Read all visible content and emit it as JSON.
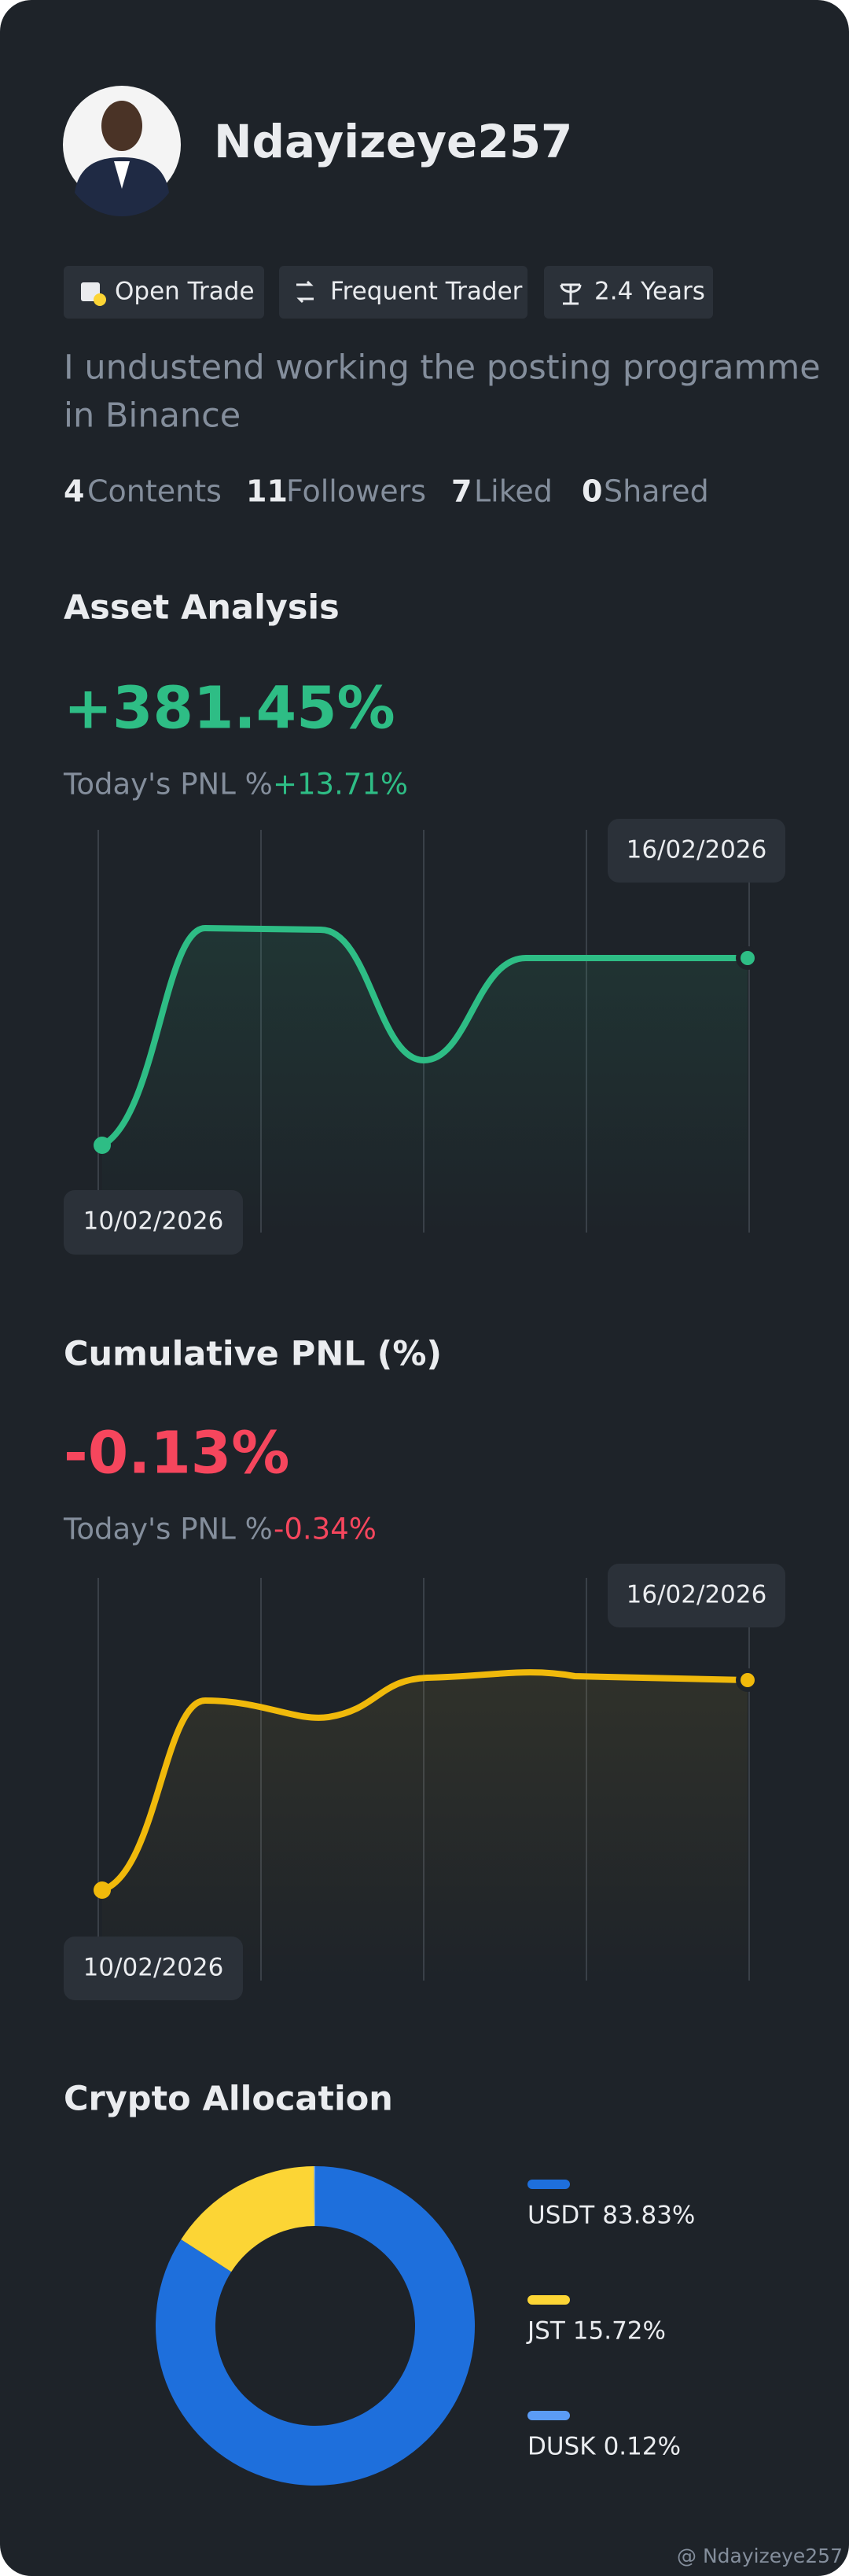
{
  "profile": {
    "name": "Ndayizeye257"
  },
  "badges": [
    "Open Trade",
    "Frequent Trader",
    "2.4 Years"
  ],
  "bio": [
    "I undustend working the posting programme",
    "in Binance"
  ],
  "stats": [
    {
      "value": 4,
      "label": "Contents"
    },
    {
      "value": 11,
      "label": "Followers"
    },
    {
      "value": 7,
      "label": "Liked"
    },
    {
      "value": 0,
      "label": "Shared"
    }
  ],
  "asset_analysis": {
    "title": "Asset Analysis",
    "value": "+381.45%",
    "today_label": "Today's PNL %",
    "today_value": "+13.71%",
    "start_date": "10/02/2026",
    "end_date": "16/02/2026"
  },
  "cumulative_pnl": {
    "title": "Cumulative PNL (%)",
    "value": "-0.13%",
    "today_label": "Today's PNL %",
    "today_value": "-0.34%",
    "start_date": "10/02/2026",
    "end_date": "16/02/2026"
  },
  "chart_data": {
    "type": "pie",
    "title": "Crypto Allocation",
    "donut": true,
    "categories": [
      "USDT",
      "JST",
      "DUSK"
    ],
    "values": [
      83.83,
      15.72,
      0.12
    ],
    "value_labels": [
      "83.83%",
      "15.72%",
      "0.12%"
    ],
    "colors": [
      "#1e6fdc",
      "#fcd535",
      "#5b9cf6"
    ]
  },
  "watermark": "@ Ndayizeye257"
}
